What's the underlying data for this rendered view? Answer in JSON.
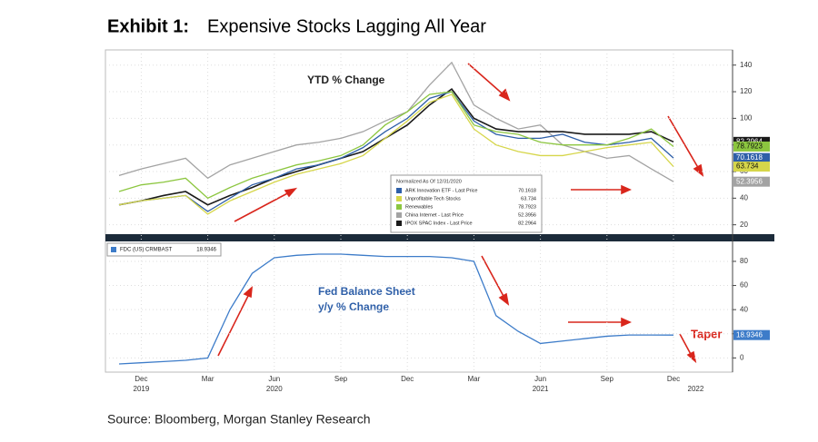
{
  "header": {
    "label": "Exhibit 1:",
    "title": "Expensive Stocks Lagging All Year"
  },
  "source": "Source: Bloomberg, Morgan Stanley Research",
  "chart_data": [
    {
      "type": "line",
      "annotation": "YTD % Change",
      "legend_title": "Normalized As Of 12/31/2020",
      "categories": [
        null,
        "Dec",
        null,
        null,
        "Mar",
        null,
        null,
        "Jun",
        null,
        null,
        "Sep",
        null,
        null,
        "Dec",
        null,
        null,
        "Mar",
        null,
        null,
        "Jun",
        null,
        null,
        "Sep",
        null,
        null,
        "Dec",
        null
      ],
      "year_labels": [
        null,
        "2019",
        null,
        null,
        null,
        null,
        null,
        "2020",
        null,
        null,
        null,
        null,
        null,
        null,
        null,
        null,
        null,
        null,
        null,
        "2021",
        null,
        null,
        null,
        null,
        null,
        null,
        "2022"
      ],
      "ylim": [
        15,
        148
      ],
      "yticks": [
        20,
        40,
        60,
        80,
        100,
        120,
        140
      ],
      "grid": true,
      "series": [
        {
          "name": "China Internet - Last Price",
          "color": "#a3a3a3",
          "values": [
            57,
            62,
            66,
            70,
            55,
            65,
            70,
            75,
            80,
            82,
            85,
            90,
            98,
            105,
            125,
            142,
            110,
            100,
            92,
            95,
            80,
            75,
            70,
            72,
            62,
            52.3956,
            null
          ]
        },
        {
          "name": "IPOX SPAC Index - Last Price",
          "color": "#1a1a1a",
          "values": [
            35,
            38,
            42,
            45,
            35,
            42,
            48,
            55,
            60,
            65,
            70,
            75,
            85,
            95,
            110,
            122,
            100,
            92,
            90,
            90,
            90,
            88,
            88,
            88,
            90,
            82.2964,
            null
          ]
        },
        {
          "name": "ARK Innovation ETF - Last Price",
          "color": "#2e5fa8",
          "values": [
            35,
            38,
            40,
            42,
            30,
            40,
            50,
            55,
            62,
            65,
            70,
            78,
            90,
            100,
            115,
            120,
            98,
            88,
            85,
            85,
            88,
            82,
            80,
            82,
            85,
            70.1618,
            null
          ]
        },
        {
          "name": "Renewables",
          "color": "#8cc63f",
          "values": [
            45,
            50,
            52,
            55,
            40,
            48,
            55,
            60,
            65,
            68,
            72,
            80,
            95,
            105,
            118,
            120,
            95,
            90,
            88,
            82,
            80,
            80,
            80,
            85,
            92,
            78.7923,
            null
          ]
        },
        {
          "name": "Unprofitable Tech Stocks",
          "color": "#d6d64a",
          "values": [
            35,
            38,
            40,
            42,
            28,
            38,
            45,
            52,
            58,
            62,
            66,
            72,
            85,
            98,
            112,
            118,
            92,
            80,
            75,
            72,
            72,
            75,
            78,
            80,
            82,
            63.734,
            null
          ]
        }
      ]
    },
    {
      "type": "line",
      "annotation": [
        "Fed Balance Sheet",
        "y/y % Change"
      ],
      "taper": "Taper",
      "ylim": [
        -8,
        92
      ],
      "yticks": [
        0,
        20,
        40,
        60,
        80
      ],
      "grid": true,
      "series": [
        {
          "name": "FDC (US) CRMBAST",
          "color": "#3d7cc9",
          "values": [
            -5,
            -4,
            -3,
            -2,
            0,
            40,
            70,
            83,
            85,
            86,
            86,
            85,
            84,
            84,
            84,
            83,
            80,
            35,
            22,
            12,
            14,
            16,
            18,
            19,
            19,
            18.9346,
            null
          ]
        }
      ]
    }
  ]
}
